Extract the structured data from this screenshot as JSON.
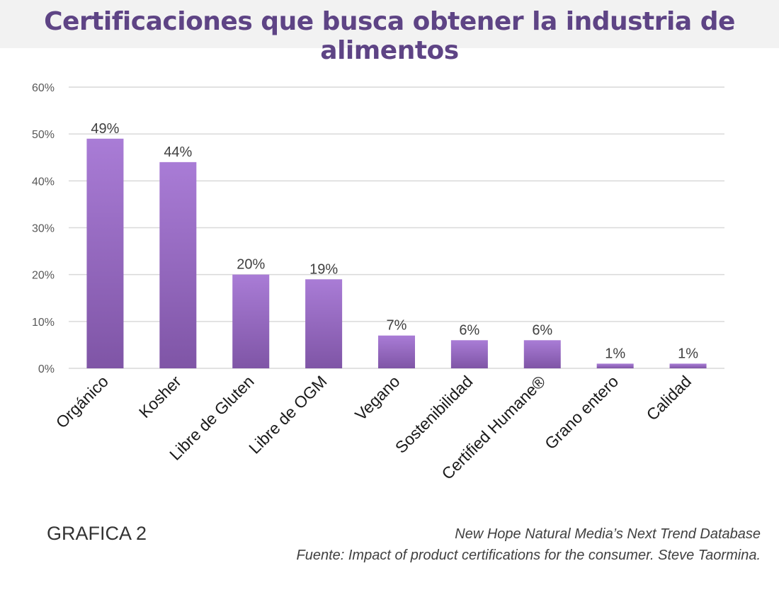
{
  "title": "Certificaciones que busca obtener la industria de alimentos",
  "graph_label": "GRAFICA 2",
  "source_line1": "New Hope Natural Media’s Next Trend Database",
  "source_line2": "Fuente:  Impact of product certifications for the consumer.  Steve Taormina.",
  "colors": {
    "bar_top": "#a97cd6",
    "bar_bottom": "#7f55a6",
    "title": "#5e4485",
    "grid": "#d9d9d9"
  },
  "chart_data": {
    "type": "bar",
    "categories": [
      "Orgánico",
      "Kosher",
      "Libre de Gluten",
      "Libre de OGM",
      "Vegano",
      "Sostenibilidad",
      "Certified Humane®",
      "Grano entero",
      "Calidad"
    ],
    "values": [
      49,
      44,
      20,
      19,
      7,
      6,
      6,
      1,
      1
    ],
    "data_labels": [
      "49%",
      "44%",
      "20%",
      "19%",
      "7%",
      "6%",
      "6%",
      "1%",
      "1%"
    ],
    "yticks": [
      "0%",
      "10%",
      "20%",
      "30%",
      "40%",
      "50%",
      "60%"
    ],
    "ylim": [
      0,
      60
    ],
    "grid": true,
    "legend": "none"
  }
}
